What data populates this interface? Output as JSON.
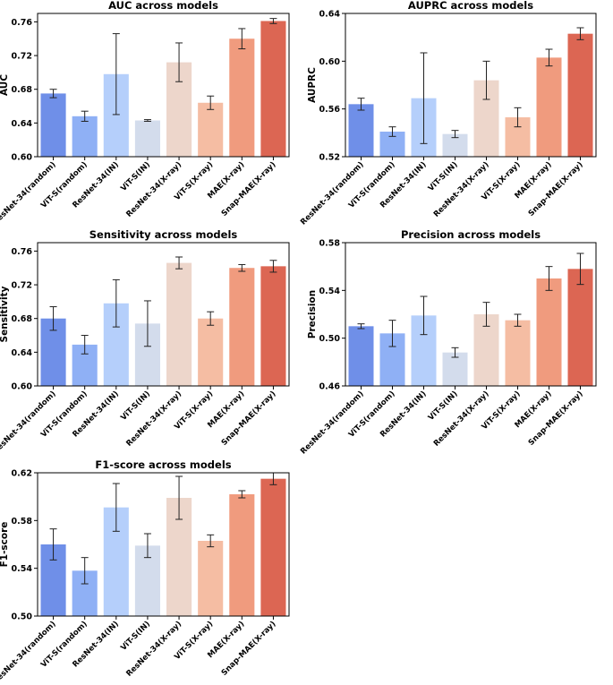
{
  "chart_data": [
    {
      "type": "bar",
      "title": "AUC across models",
      "xlabel": "",
      "ylabel": "AUC",
      "categories": [
        "ResNet-34(random)",
        "ViT-S(random)",
        "ResNet-34(IN)",
        "ViT-S(IN)",
        "ResNet-34(X-ray)",
        "ViT-S(X-ray)",
        "MAE(X-ray)",
        "Snap-MAE(X-ray)"
      ],
      "values": [
        0.675,
        0.648,
        0.698,
        0.643,
        0.712,
        0.664,
        0.74,
        0.761
      ],
      "errors": [
        0.005,
        0.006,
        0.048,
        0.001,
        0.023,
        0.008,
        0.012,
        0.003
      ],
      "ylim": [
        0.6,
        0.77
      ],
      "yticks": [
        "0.60",
        "0.64",
        "0.68",
        "0.72",
        "0.76"
      ],
      "grid": false
    },
    {
      "type": "bar",
      "title": "AUPRC across models",
      "xlabel": "",
      "ylabel": "AUPRC",
      "categories": [
        "ResNet-34(random)",
        "ViT-S(random)",
        "ResNet-34(IN)",
        "ViT-S(IN)",
        "ResNet-34(X-ray)",
        "ViT-S(X-ray)",
        "MAE(X-ray)",
        "Snap-MAE(X-ray)"
      ],
      "values": [
        0.564,
        0.541,
        0.569,
        0.539,
        0.584,
        0.553,
        0.603,
        0.623
      ],
      "errors": [
        0.005,
        0.004,
        0.038,
        0.003,
        0.016,
        0.008,
        0.007,
        0.005
      ],
      "ylim": [
        0.52,
        0.64
      ],
      "yticks": [
        "0.52",
        "0.56",
        "0.60",
        "0.64"
      ],
      "grid": false
    },
    {
      "type": "bar",
      "title": "Sensitivity across models",
      "xlabel": "",
      "ylabel": "Sensitivity",
      "categories": [
        "ResNet-34(random)",
        "ViT-S(random)",
        "ResNet-34(IN)",
        "ViT-S(IN)",
        "ResNet-34(X-ray)",
        "ViT-S(X-ray)",
        "MAE(X-ray)",
        "Snap-MAE(X-ray)"
      ],
      "values": [
        0.68,
        0.649,
        0.698,
        0.674,
        0.746,
        0.68,
        0.74,
        0.742
      ],
      "errors": [
        0.014,
        0.011,
        0.028,
        0.027,
        0.007,
        0.008,
        0.004,
        0.007
      ],
      "ylim": [
        0.6,
        0.77
      ],
      "yticks": [
        "0.60",
        "0.64",
        "0.68",
        "0.72",
        "0.76"
      ],
      "grid": false
    },
    {
      "type": "bar",
      "title": "Precision across models",
      "xlabel": "",
      "ylabel": "Precision",
      "categories": [
        "ResNet-34(random)",
        "ViT-S(random)",
        "ResNet-34(IN)",
        "ViT-S(IN)",
        "ResNet-34(X-ray)",
        "ViT-S(X-ray)",
        "MAE(X-ray)",
        "Snap-MAE(X-ray)"
      ],
      "values": [
        0.51,
        0.504,
        0.519,
        0.488,
        0.52,
        0.515,
        0.55,
        0.558
      ],
      "errors": [
        0.002,
        0.011,
        0.016,
        0.004,
        0.01,
        0.005,
        0.01,
        0.013
      ],
      "ylim": [
        0.46,
        0.58
      ],
      "yticks": [
        "0.46",
        "0.50",
        "0.54",
        "0.58"
      ],
      "grid": false
    },
    {
      "type": "bar",
      "title": "F1-score across models",
      "xlabel": "",
      "ylabel": "F1-score",
      "categories": [
        "ResNet-34(random)",
        "ViT-S(random)",
        "ResNet-34(IN)",
        "ViT-S(IN)",
        "ResNet-34(X-ray)",
        "ViT-S(X-ray)",
        "MAE(X-ray)",
        "Snap-MAE(X-ray)"
      ],
      "values": [
        0.56,
        0.538,
        0.591,
        0.559,
        0.599,
        0.563,
        0.602,
        0.615
      ],
      "errors": [
        0.013,
        0.011,
        0.02,
        0.01,
        0.018,
        0.005,
        0.003,
        0.005
      ],
      "ylim": [
        0.5,
        0.62
      ],
      "yticks": [
        "0.50",
        "0.54",
        "0.58",
        "0.62"
      ],
      "grid": false
    }
  ],
  "colors": [
    "#6f8fe8",
    "#8fb0f5",
    "#b5cffb",
    "#d3dcec",
    "#edd6cb",
    "#f5bda3",
    "#f09b7e",
    "#dc6653"
  ]
}
